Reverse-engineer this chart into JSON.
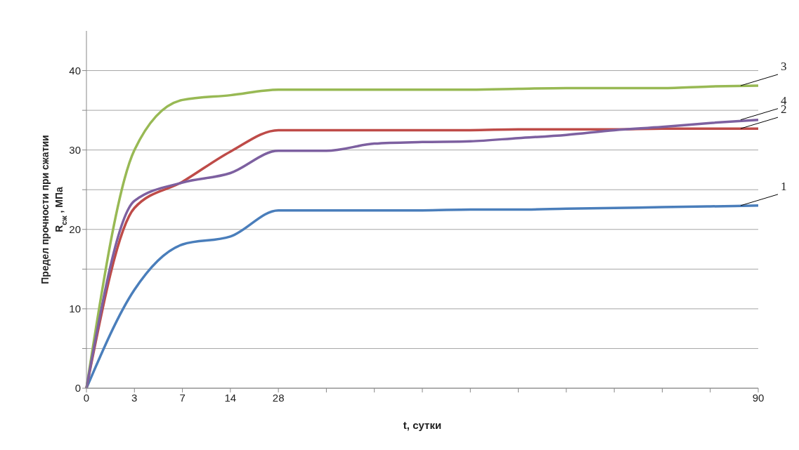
{
  "chart_data": {
    "type": "line",
    "xlabel": "t, сутки",
    "ylabel": "Предел прочности при сжатии\nR$_{сж}$, МПа",
    "categories": [
      "0",
      "3",
      "7",
      "14",
      "28",
      null,
      null,
      null,
      null,
      null,
      null,
      null,
      null,
      null,
      "90"
    ],
    "series": [
      {
        "color": "#4a7ebb",
        "values": [
          0,
          12.4,
          18.1,
          19.1,
          22.4,
          22.4,
          22.4,
          22.4,
          22.5,
          22.5,
          22.6,
          22.7,
          22.8,
          22.9,
          23.0
        ]
      },
      {
        "color": "#be4b48",
        "values": [
          0,
          22.7,
          26.0,
          29.8,
          32.5,
          32.5,
          32.5,
          32.5,
          32.5,
          32.6,
          32.6,
          32.6,
          32.7,
          32.7,
          32.7
        ]
      },
      {
        "color": "#98b954",
        "values": [
          0,
          30.0,
          36.3,
          36.9,
          37.6,
          37.6,
          37.6,
          37.6,
          37.6,
          37.7,
          37.8,
          37.8,
          37.8,
          38.0,
          38.1
        ]
      },
      {
        "color": "#7d60a0",
        "values": [
          0,
          23.6,
          25.9,
          27.1,
          29.9,
          29.9,
          30.8,
          31.0,
          31.1,
          31.5,
          31.9,
          32.5,
          32.9,
          33.4,
          33.8
        ]
      }
    ],
    "ylim": [
      0,
      45
    ],
    "yticks": [
      0,
      {
        "value": 5,
        "label": null
      },
      10,
      {
        "value": 15,
        "label": null
      },
      20,
      {
        "value": 25,
        "label": null
      },
      30,
      {
        "value": 35,
        "label": null
      },
      40
    ],
    "grid": "y",
    "marker": "none",
    "line_style": "solid",
    "annotations": [
      {
        "text": "3",
        "x": "90",
        "y": 38.1
      },
      {
        "text": "4",
        "x": "90",
        "y": 33.8
      },
      {
        "text": "2",
        "x": "90",
        "y": 32.7
      },
      {
        "text": "1",
        "x": "90",
        "y": 23.0
      }
    ]
  }
}
